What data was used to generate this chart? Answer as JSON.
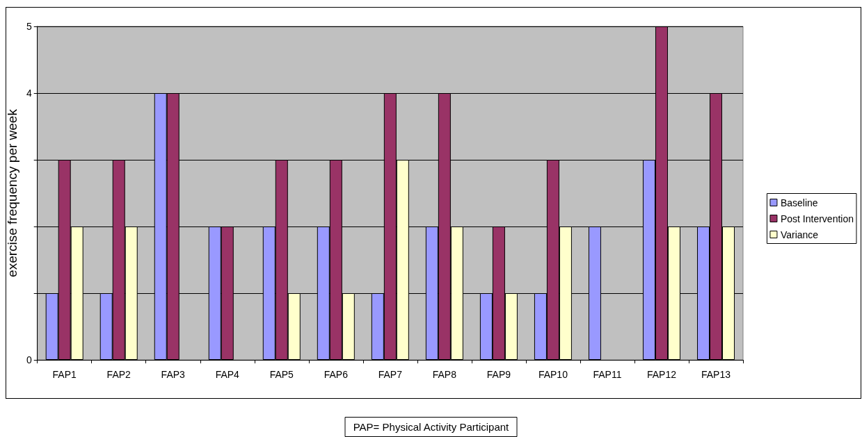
{
  "chart_data": {
    "type": "bar",
    "ylabel": "exercise frequency per week",
    "categories": [
      "FAP1",
      "FAP2",
      "FAP3",
      "FAP4",
      "FAP5",
      "FAP6",
      "FAP7",
      "FAP8",
      "FAP9",
      "FAP10",
      "FAP11",
      "FAP12",
      "FAP13"
    ],
    "series": [
      {
        "name": "Baseline",
        "color": "#9999ff",
        "values": [
          1,
          1,
          4,
          2,
          2,
          2,
          1,
          2,
          1,
          1,
          2,
          3,
          2
        ]
      },
      {
        "name": "Post Intervention",
        "color": "#993366",
        "values": [
          3,
          3,
          4,
          2,
          3,
          3,
          4,
          4,
          2,
          3,
          0,
          5,
          4
        ]
      },
      {
        "name": "Variance",
        "color": "#ffffcc",
        "values": [
          2,
          2,
          0,
          0,
          1,
          1,
          3,
          2,
          1,
          2,
          0,
          2,
          2
        ]
      }
    ],
    "ylim": [
      0,
      5
    ],
    "yticks": [
      0,
      {
        "value": 1,
        "label": null
      },
      {
        "value": 2,
        "label": null
      },
      {
        "value": 3,
        "label": null
      },
      4,
      5
    ],
    "grid": "y",
    "legend": "right",
    "annotations": [
      "PAP= Physical Activity Participant"
    ]
  }
}
